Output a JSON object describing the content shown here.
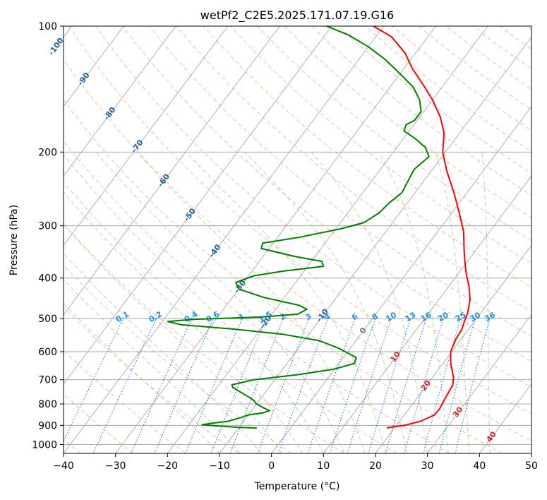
{
  "chart_data": {
    "type": "line",
    "subtype": "skew-t log-p",
    "title": "wetPf2_C2E5.2025.171.07.19.G16",
    "xlabel": "Temperature (°C)",
    "ylabel": "Pressure (hPa)",
    "xlim": [
      -40,
      50
    ],
    "ylim": [
      1050,
      100
    ],
    "y_scale": "log",
    "x_ticks": [
      -40,
      -30,
      -20,
      -10,
      0,
      10,
      20,
      30,
      40,
      50
    ],
    "y_ticks": [
      100,
      200,
      300,
      400,
      500,
      600,
      700,
      800,
      900,
      1000
    ],
    "grid": true,
    "colors": {
      "temperature": "#ff0000",
      "dewpoint": "#008000",
      "dry_adiabat": "#f4a582",
      "moist_adiabat": "#8fc98f",
      "mixing_ratio": "#1f77d4",
      "grid": "#a8a8a8",
      "isotherm_label": "#1f5f9f",
      "mixing_label": "#1f8fe8",
      "hot_label": "#d62728"
    },
    "series": [
      {
        "key": "temperature",
        "points": [
          [
            18.5,
            913
          ],
          [
            21.5,
            900
          ],
          [
            24.0,
            880
          ],
          [
            25.8,
            850
          ],
          [
            25.9,
            820
          ],
          [
            25.5,
            780
          ],
          [
            25.0,
            720
          ],
          [
            24.0,
            690
          ],
          [
            21.5,
            640
          ],
          [
            19.8,
            600
          ],
          [
            19.0,
            560
          ],
          [
            18.7,
            530
          ],
          [
            18.0,
            505
          ],
          [
            17.5,
            485
          ],
          [
            16.0,
            450
          ],
          [
            14.0,
            420
          ],
          [
            11.5,
            390
          ],
          [
            9.5,
            365
          ],
          [
            7.5,
            340
          ],
          [
            5.0,
            310
          ],
          [
            1.5,
            280
          ],
          [
            -2.5,
            250
          ],
          [
            -7.0,
            222
          ],
          [
            -10.5,
            200
          ],
          [
            -13.0,
            180
          ],
          [
            -16.0,
            165
          ],
          [
            -20.0,
            150
          ],
          [
            -24.0,
            138
          ],
          [
            -28.5,
            126
          ],
          [
            -32.0,
            116
          ],
          [
            -37.0,
            106
          ],
          [
            -42.0,
            100
          ]
        ]
      },
      {
        "key": "dewpoint",
        "points": [
          [
            -6.5,
            913
          ],
          [
            -10.0,
            910
          ],
          [
            -13.0,
            905
          ],
          [
            -17.5,
            897
          ],
          [
            -16.0,
            890
          ],
          [
            -13.0,
            880
          ],
          [
            -11.0,
            862
          ],
          [
            -10.0,
            850
          ],
          [
            -7.5,
            840
          ],
          [
            -6.5,
            830
          ],
          [
            -8.0,
            818
          ],
          [
            -10.0,
            800
          ],
          [
            -11.0,
            785
          ],
          [
            -12.5,
            770
          ],
          [
            -14.5,
            752
          ],
          [
            -17.0,
            730
          ],
          [
            -17.5,
            720
          ],
          [
            -14.0,
            700
          ],
          [
            -6.0,
            680
          ],
          [
            0.0,
            660
          ],
          [
            3.0,
            640
          ],
          [
            2.5,
            620
          ],
          [
            -2.0,
            590
          ],
          [
            -7.0,
            565
          ],
          [
            -15.0,
            545
          ],
          [
            -25.0,
            530
          ],
          [
            -36.0,
            517
          ],
          [
            -39.0,
            508
          ],
          [
            -34.0,
            502
          ],
          [
            -22.0,
            496
          ],
          [
            -15.0,
            488
          ],
          [
            -14.0,
            475
          ],
          [
            -16.0,
            465
          ],
          [
            -24.0,
            445
          ],
          [
            -30.0,
            425
          ],
          [
            -31.5,
            410
          ],
          [
            -29.0,
            395
          ],
          [
            -24.0,
            385
          ],
          [
            -17.0,
            375
          ],
          [
            -18.0,
            365
          ],
          [
            -24.0,
            355
          ],
          [
            -31.5,
            340
          ],
          [
            -32.0,
            330
          ],
          [
            -26.0,
            320
          ],
          [
            -19.0,
            305
          ],
          [
            -15.5,
            295
          ],
          [
            -14.0,
            280
          ],
          [
            -13.5,
            265
          ],
          [
            -12.5,
            250
          ],
          [
            -13.0,
            235
          ],
          [
            -13.5,
            220
          ],
          [
            -12.5,
            205
          ],
          [
            -14.5,
            195
          ],
          [
            -18.0,
            185
          ],
          [
            -21.0,
            178
          ],
          [
            -21.5,
            172
          ],
          [
            -20.5,
            168
          ],
          [
            -20.5,
            160
          ],
          [
            -22.5,
            150
          ],
          [
            -25.5,
            140
          ],
          [
            -30.0,
            130
          ],
          [
            -35.0,
            120
          ],
          [
            -40.0,
            112
          ],
          [
            -45.5,
            105
          ],
          [
            -51.0,
            100
          ]
        ]
      }
    ],
    "isotherm_labels": [
      "-100",
      "-90",
      "-80",
      "-70",
      "-60",
      "-50",
      "-40",
      "-30",
      "-20",
      "-10",
      "0",
      "10",
      "20",
      "30",
      "40"
    ],
    "mixing_ratio_labels": [
      "0.1",
      "0.2",
      "0.4",
      "0.6",
      "1",
      "1.5",
      "2",
      "3",
      "4",
      "6",
      "8",
      "10",
      "13",
      "16",
      "20",
      "25",
      "30",
      "36"
    ],
    "mixing_ratio_values": [
      0.1,
      0.2,
      0.4,
      0.6,
      1,
      1.5,
      2,
      3,
      4,
      6,
      8,
      10,
      13,
      16,
      20,
      25,
      30,
      36
    ]
  }
}
